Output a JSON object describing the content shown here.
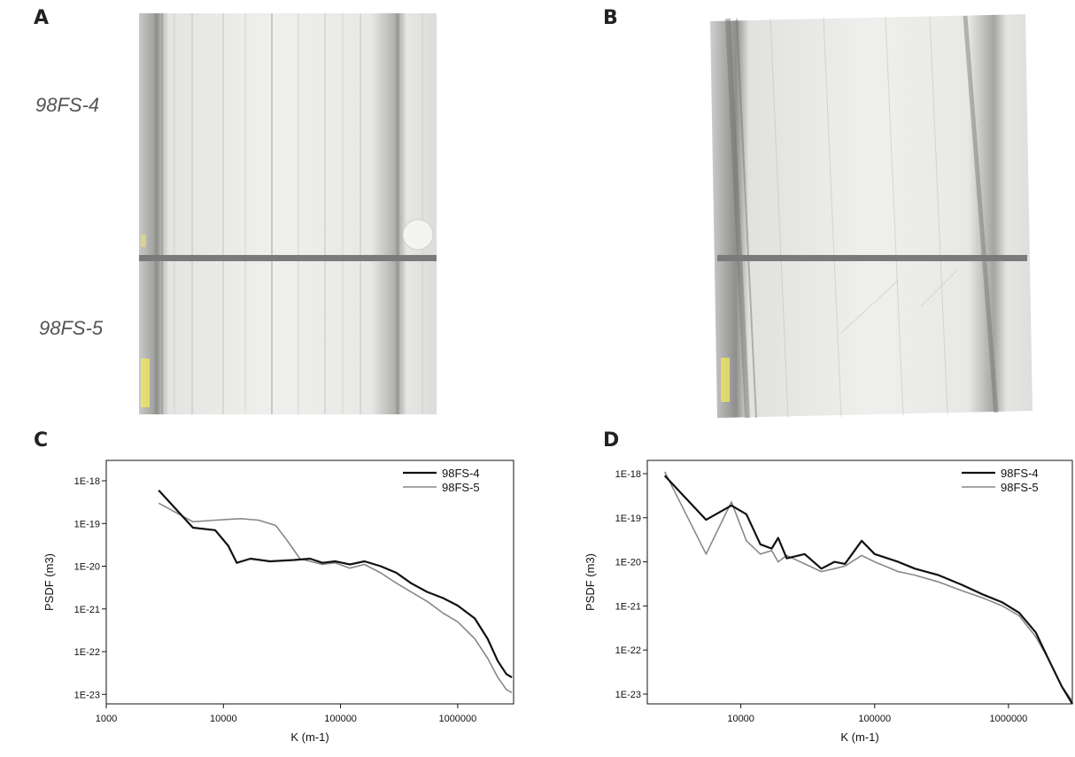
{
  "panels": {
    "a": "A",
    "b": "B",
    "c": "C",
    "d": "D"
  },
  "micrograph_a": {
    "upper_label": "98FS-4",
    "lower_label": "98FS-5"
  },
  "colors": {
    "series_98FS_4": "#111111",
    "series_98FS_5": "#888888",
    "divider": "#7a7a7a",
    "scale_mark": "#f2ea5c"
  },
  "chart_data": [
    {
      "type": "line",
      "panel": "C",
      "xlabel": "K (m-1)",
      "ylabel": "PSDF (m3)",
      "x_scale": "log",
      "y_scale": "log",
      "xlim": [
        1000,
        3000000
      ],
      "ylim": [
        6e-24,
        3e-18
      ],
      "x_ticks": [
        1000,
        10000,
        100000,
        1000000
      ],
      "x_tick_labels": [
        "1000",
        "10000",
        "100000",
        "1000000"
      ],
      "y_ticks": [
        1e-18,
        1e-19,
        1e-20,
        1e-21,
        1e-22,
        1e-23
      ],
      "y_tick_labels": [
        "1E-18",
        "1E-19",
        "1E-20",
        "1E-21",
        "1E-22",
        "1E-23"
      ],
      "legend_position": "top-right",
      "series": [
        {
          "name": "98FS-4",
          "x": [
            2800,
            5500,
            8500,
            11000,
            13000,
            17000,
            25000,
            40000,
            55000,
            70000,
            90000,
            120000,
            160000,
            220000,
            300000,
            400000,
            550000,
            750000,
            1000000,
            1400000,
            1800000,
            2200000,
            2600000,
            2900000
          ],
          "y": [
            6e-19,
            8e-20,
            7e-20,
            3e-20,
            1.2e-20,
            1.5e-20,
            1.3e-20,
            1.4e-20,
            1.5e-20,
            1.2e-20,
            1.3e-20,
            1.1e-20,
            1.3e-20,
            1e-20,
            7e-21,
            4e-21,
            2.5e-21,
            1.8e-21,
            1.2e-21,
            6e-22,
            2e-22,
            6e-23,
            3e-23,
            2.5e-23
          ]
        },
        {
          "name": "98FS-5",
          "x": [
            2800,
            5500,
            8500,
            14000,
            20000,
            28000,
            35000,
            45000,
            55000,
            70000,
            90000,
            120000,
            160000,
            220000,
            300000,
            400000,
            550000,
            750000,
            1000000,
            1400000,
            1800000,
            2200000,
            2600000,
            2900000
          ],
          "y": [
            3e-19,
            1.1e-19,
            1.2e-19,
            1.3e-19,
            1.2e-19,
            9e-20,
            4e-20,
            1.5e-20,
            1.3e-20,
            1.1e-20,
            1.2e-20,
            9e-21,
            1.1e-20,
            7e-21,
            4e-21,
            2.5e-21,
            1.5e-21,
            8e-22,
            5e-22,
            2e-22,
            7e-23,
            2.5e-23,
            1.3e-23,
            1.1e-23
          ]
        }
      ]
    },
    {
      "type": "line",
      "panel": "D",
      "xlabel": "K (m-1)",
      "ylabel": "PSDF (m3)",
      "x_scale": "log",
      "y_scale": "log",
      "xlim": [
        2000,
        3000000
      ],
      "ylim": [
        6e-24,
        2e-18
      ],
      "x_ticks": [
        10000,
        100000,
        1000000
      ],
      "x_tick_labels": [
        "10000",
        "100000",
        "1000000"
      ],
      "y_ticks": [
        1e-18,
        1e-19,
        1e-20,
        1e-21,
        1e-22,
        1e-23
      ],
      "y_tick_labels": [
        "1E-18",
        "1E-19",
        "1E-20",
        "1E-21",
        "1E-22",
        "1E-23"
      ],
      "legend_position": "top-right",
      "series": [
        {
          "name": "98FS-4",
          "x": [
            2700,
            5500,
            8500,
            11000,
            14000,
            17000,
            19000,
            22000,
            30000,
            40000,
            50000,
            60000,
            80000,
            100000,
            150000,
            200000,
            300000,
            450000,
            650000,
            900000,
            1200000,
            1600000,
            2000000,
            2500000,
            3000000
          ],
          "y": [
            9e-19,
            9e-20,
            1.9e-19,
            1.2e-19,
            2.5e-20,
            2e-20,
            3.5e-20,
            1.2e-20,
            1.5e-20,
            7e-21,
            1e-20,
            9e-21,
            3e-20,
            1.5e-20,
            1e-20,
            7e-21,
            5e-21,
            3e-21,
            1.8e-21,
            1.2e-21,
            7e-22,
            2.5e-22,
            6e-23,
            1.5e-23,
            6e-24
          ]
        },
        {
          "name": "98FS-5",
          "x": [
            2700,
            5500,
            8500,
            11000,
            14000,
            17000,
            19000,
            22000,
            30000,
            40000,
            50000,
            60000,
            80000,
            100000,
            150000,
            200000,
            300000,
            450000,
            650000,
            900000,
            1200000,
            1600000,
            2000000,
            2500000,
            3000000
          ],
          "y": [
            1.1e-18,
            1.5e-20,
            2.3e-19,
            3e-20,
            1.5e-20,
            1.8e-20,
            1e-20,
            1.4e-20,
            9e-21,
            6e-21,
            7e-21,
            8e-21,
            1.4e-20,
            1e-20,
            6e-21,
            5e-21,
            3.5e-21,
            2.2e-21,
            1.5e-21,
            1e-21,
            6e-22,
            2e-22,
            6e-23,
            1.5e-23,
            7e-24
          ]
        }
      ]
    }
  ]
}
